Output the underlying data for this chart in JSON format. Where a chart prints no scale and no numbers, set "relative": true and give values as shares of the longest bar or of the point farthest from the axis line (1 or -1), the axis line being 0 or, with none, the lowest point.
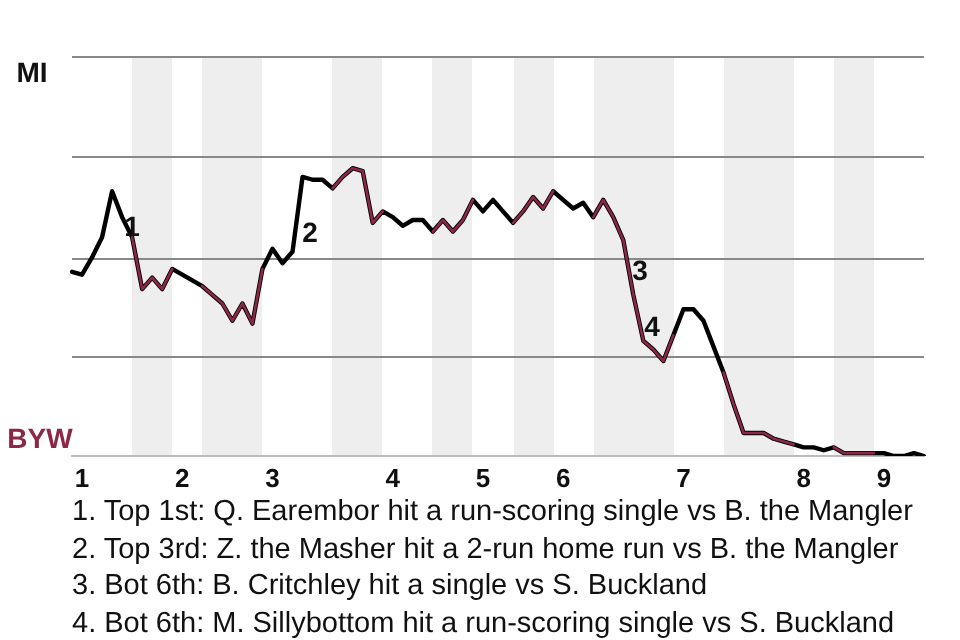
{
  "chart_data": {
    "type": "line",
    "relative": true,
    "categories": [
      null,
      "1",
      null,
      null,
      null,
      null,
      null,
      null,
      null,
      null,
      null,
      "2",
      null,
      null,
      null,
      null,
      null,
      null,
      null,
      null,
      "3",
      null,
      null,
      null,
      null,
      null,
      null,
      null,
      null,
      null,
      null,
      null,
      "4",
      null,
      null,
      null,
      null,
      null,
      null,
      null,
      null,
      "5",
      null,
      null,
      null,
      null,
      null,
      null,
      null,
      "6",
      null,
      null,
      null,
      null,
      null,
      null,
      null,
      null,
      null,
      null,
      null,
      "7",
      null,
      null,
      null,
      null,
      null,
      null,
      null,
      null,
      null,
      null,
      null,
      "8",
      null,
      null,
      null,
      null,
      null,
      null,
      null,
      "9",
      null,
      null,
      null,
      null
    ],
    "legend": false,
    "marker": "none",
    "line_style": "solid",
    "ref_lines": [
      {
        "axis": "y",
        "value": 1.39,
        "color": "#888888"
      },
      {
        "axis": "y",
        "value": 1.04,
        "color": "#888888"
      },
      {
        "axis": "y",
        "value": 0.69,
        "color": "#888888"
      },
      {
        "axis": "y",
        "value": 0.35,
        "color": "#888888"
      }
    ],
    "series": [
      {
        "color": "#000000",
        "values": [
          0.64,
          0.63,
          0.69,
          0.76,
          0.92,
          0.83,
          0.76,
          0.58,
          0.62,
          0.58,
          0.65,
          0.63,
          0.61,
          0.59,
          0.56,
          0.53,
          0.47,
          0.53,
          0.46,
          0.65,
          0.72,
          0.67,
          0.71,
          0.97,
          0.96,
          0.96,
          0.93,
          0.97,
          1,
          0.99,
          0.81,
          0.85,
          0.83,
          0.8,
          0.82,
          0.82,
          0.78,
          0.82,
          0.78,
          0.82,
          0.89,
          0.85,
          0.89,
          0.85,
          0.81,
          0.85,
          0.9,
          0.86,
          0.92,
          0.89,
          0.86,
          0.88,
          0.83,
          0.89,
          0.83,
          0.75,
          0.56,
          0.4,
          0.37,
          0.33,
          0.42,
          0.51,
          0.51,
          0.47,
          0.38,
          0.29,
          0.18,
          0.08,
          0.08,
          0.08,
          0.06,
          0.05,
          0.04,
          0.03,
          0.03,
          0.02,
          0.03,
          0.01,
          0.01,
          0.01,
          0.01,
          0.01,
          0,
          0,
          0.01,
          0
        ]
      },
      {
        "color": "#8b2846",
        "values": [
          null,
          null,
          null,
          null,
          null,
          null,
          0.76,
          0.58,
          0.62,
          0.58,
          0.65,
          null,
          null,
          0.59,
          0.56,
          0.53,
          0.47,
          0.53,
          0.46,
          0.65,
          null,
          null,
          null,
          null,
          null,
          null,
          0.93,
          0.97,
          1,
          0.99,
          0.81,
          0.85,
          null,
          null,
          null,
          null,
          0.78,
          0.82,
          0.78,
          0.82,
          0.89,
          null,
          null,
          null,
          0.81,
          0.85,
          0.9,
          0.86,
          0.92,
          null,
          null,
          null,
          0.83,
          0.89,
          0.83,
          0.75,
          0.56,
          0.4,
          0.37,
          0.33,
          0.42,
          null,
          null,
          null,
          null,
          0.29,
          0.18,
          0.08,
          0.08,
          0.08,
          0.06,
          0.05,
          0.04,
          null,
          null,
          null,
          0.03,
          0.01,
          0.01,
          0.01,
          0.01,
          null,
          null,
          null,
          null,
          null
        ]
      }
    ],
    "annotations": [
      "MI",
      "BYW",
      "1",
      "2",
      "3",
      "4",
      "1. Top 1st: Q. Earembor hit a run-scoring single vs B. the Mangler",
      "2. Top 3rd: Z. the Masher hit a 2-run home run vs B. the Mangler",
      "3. Bot 6th: B. Critchley hit a single vs S. Buckland",
      "4. Bot 6th: M. Sillybottom hit a run-scoring single vs S. Buckland"
    ]
  }
}
